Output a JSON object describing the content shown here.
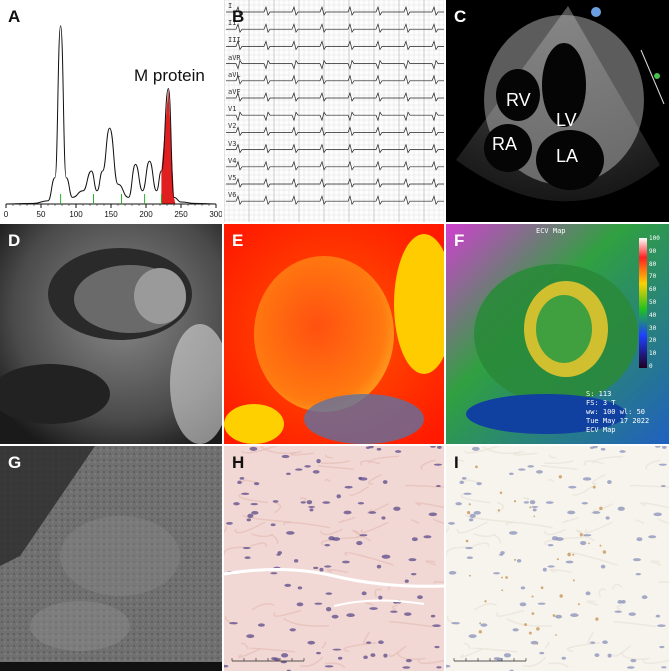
{
  "figure": {
    "panels": {
      "A": {
        "label": "A",
        "annotation": "M protein",
        "chart_type": "line"
      },
      "B": {
        "label": "B"
      },
      "C": {
        "label": "C",
        "chambers": [
          "RV",
          "LV",
          "RA",
          "LA"
        ]
      },
      "D": {
        "label": "D"
      },
      "E": {
        "label": "E"
      },
      "F": {
        "label": "F",
        "map_title": "ECV Map",
        "scale_ticks": [
          "100",
          "90",
          "80",
          "70",
          "60",
          "50",
          "40",
          "30",
          "20",
          "10",
          "0"
        ],
        "info_lines": [
          "S: 113",
          "FS: 3 T",
          "ww: 100 wl: 50",
          "Tue May 17 2022",
          "ECV Map"
        ]
      },
      "G": {
        "label": "G"
      },
      "H": {
        "label": "H"
      },
      "I": {
        "label": "I"
      }
    },
    "ecg_leads": [
      "I",
      "II",
      "III",
      "aVR",
      "aVL",
      "aVF",
      "V1",
      "V2",
      "V3",
      "V4",
      "V5",
      "V6"
    ]
  },
  "chart_data": {
    "type": "line",
    "x": [
      0,
      40,
      60,
      70,
      78,
      86,
      95,
      110,
      122,
      130,
      138,
      148,
      160,
      175,
      185,
      195,
      205,
      215,
      222,
      232,
      240,
      250,
      270,
      300
    ],
    "y": [
      0,
      0.1,
      0.5,
      4,
      27,
      4,
      1,
      2,
      5,
      2,
      5,
      11.5,
      3,
      1,
      6,
      2,
      6.5,
      2,
      5,
      17.5,
      1,
      0.3,
      0.1,
      0
    ],
    "xlim": [
      0,
      300
    ],
    "ylim": [
      0,
      30
    ],
    "xticks": [
      "0",
      "50",
      "100",
      "150",
      "200",
      "250",
      "300"
    ],
    "annotation": "M protein",
    "highlight_range": [
      222,
      242
    ]
  }
}
